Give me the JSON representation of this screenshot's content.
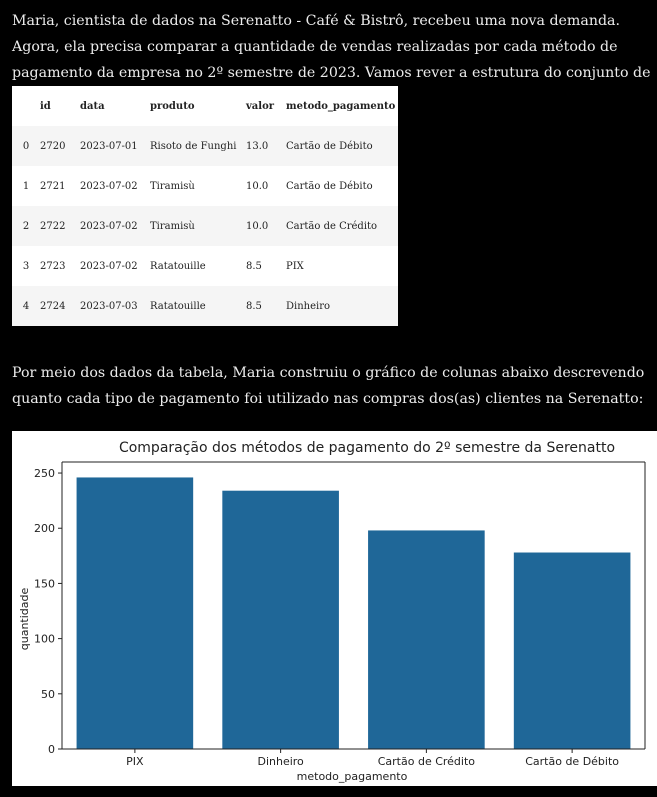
{
  "intro_text": "Maria, cientista de dados na Serenatto - Café & Bistrô, recebeu uma nova demanda. Agora, ela precisa comparar a quantidade de vendas realizadas por cada método de pagamento da empresa no 2º semestre de 2023. Vamos rever a estrutura do conjunto de dados na tabela abaixo?",
  "table": {
    "columns": [
      "",
      "id",
      "data",
      "produto",
      "valor",
      "metodo_pagamento"
    ],
    "rows": [
      [
        "0",
        "2720",
        "2023-07-01",
        "Risoto de Funghi",
        "13.0",
        "Cartão de Débito"
      ],
      [
        "1",
        "2721",
        "2023-07-02",
        "Tiramisù",
        "10.0",
        "Cartão de Débito"
      ],
      [
        "2",
        "2722",
        "2023-07-02",
        "Tiramisù",
        "10.0",
        "Cartão de Crédito"
      ],
      [
        "3",
        "2723",
        "2023-07-02",
        "Ratatouille",
        "8.5",
        "PIX"
      ],
      [
        "4",
        "2724",
        "2023-07-03",
        "Ratatouille",
        "8.5",
        "Dinheiro"
      ]
    ]
  },
  "body_text": "Por meio dos dados da tabela, Maria construiu o gráfico de colunas abaixo descrevendo quanto cada tipo de pagamento foi utilizado nas compras dos(as) clientes na Serenatto:",
  "colors": {
    "bar": "#1f6798",
    "page_bg": "#000000",
    "chart_bg": "#ffffff"
  },
  "chart_data": {
    "type": "bar",
    "title": "Comparação dos métodos de pagamento do 2º semestre da Serenatto",
    "xlabel": "metodo_pagamento",
    "ylabel": "quantidade",
    "categories": [
      "PIX",
      "Dinheiro",
      "Cartão de Crédito",
      "Cartão de Débito"
    ],
    "values": [
      246,
      234,
      198,
      178
    ],
    "ylim": [
      0,
      260
    ],
    "yticks": [
      0,
      50,
      100,
      150,
      200,
      250
    ],
    "grid": false
  }
}
